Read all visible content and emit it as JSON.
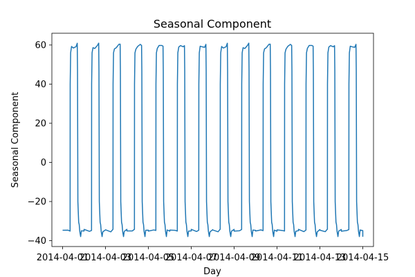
{
  "chart_data": {
    "type": "line",
    "title": "Seasonal Component",
    "xlabel": "Day",
    "ylabel": "Seasonal Component",
    "x_ticks": [
      "2014-04-01",
      "2014-04-03",
      "2014-04-05",
      "2014-04-07",
      "2014-04-09",
      "2014-04-11",
      "2014-04-13",
      "2014-04-15"
    ],
    "xlim": [
      "2014-03-31T12:00",
      "2014-04-15T12:00"
    ],
    "y_ticks": [
      "60",
      "40",
      "20",
      "0",
      "−20",
      "−40"
    ],
    "ylim": [
      -43,
      66
    ],
    "grid": false,
    "series_color": "#1f77b4",
    "series": [
      {
        "daily_pattern": [
          {
            "hour": 0,
            "value": -34.7
          },
          {
            "hour": 6,
            "value": -35.0
          },
          {
            "hour": 8.4,
            "value": -34.6
          },
          {
            "hour": 8.5,
            "value": 40
          },
          {
            "hour": 9.0,
            "value": 56
          },
          {
            "hour": 10.0,
            "value": 58.6
          },
          {
            "hour": 12.0,
            "value": 59.0
          },
          {
            "hour": 15.0,
            "value": 59.6
          },
          {
            "hour": 16.4,
            "value": 60.2
          },
          {
            "hour": 16.7,
            "value": 47
          },
          {
            "hour": 17.1,
            "value": -20
          },
          {
            "hour": 18.0,
            "value": -30.6
          },
          {
            "hour": 18.6,
            "value": -31.8
          },
          {
            "hour": 19.2,
            "value": -35.2
          },
          {
            "hour": 20.2,
            "value": -37.9
          },
          {
            "hour": 21.0,
            "value": -35.0
          },
          {
            "hour": 24,
            "value": -34.7
          }
        ],
        "days": [
          "2014-04-01",
          "2014-04-02",
          "2014-04-03",
          "2014-04-04",
          "2014-04-05",
          "2014-04-06",
          "2014-04-07",
          "2014-04-08",
          "2014-04-09",
          "2014-04-10",
          "2014-04-11",
          "2014-04-12",
          "2014-04-13",
          "2014-04-14"
        ],
        "end": {
          "x": "2014-04-15T00:00",
          "value": -38.0
        }
      }
    ]
  }
}
